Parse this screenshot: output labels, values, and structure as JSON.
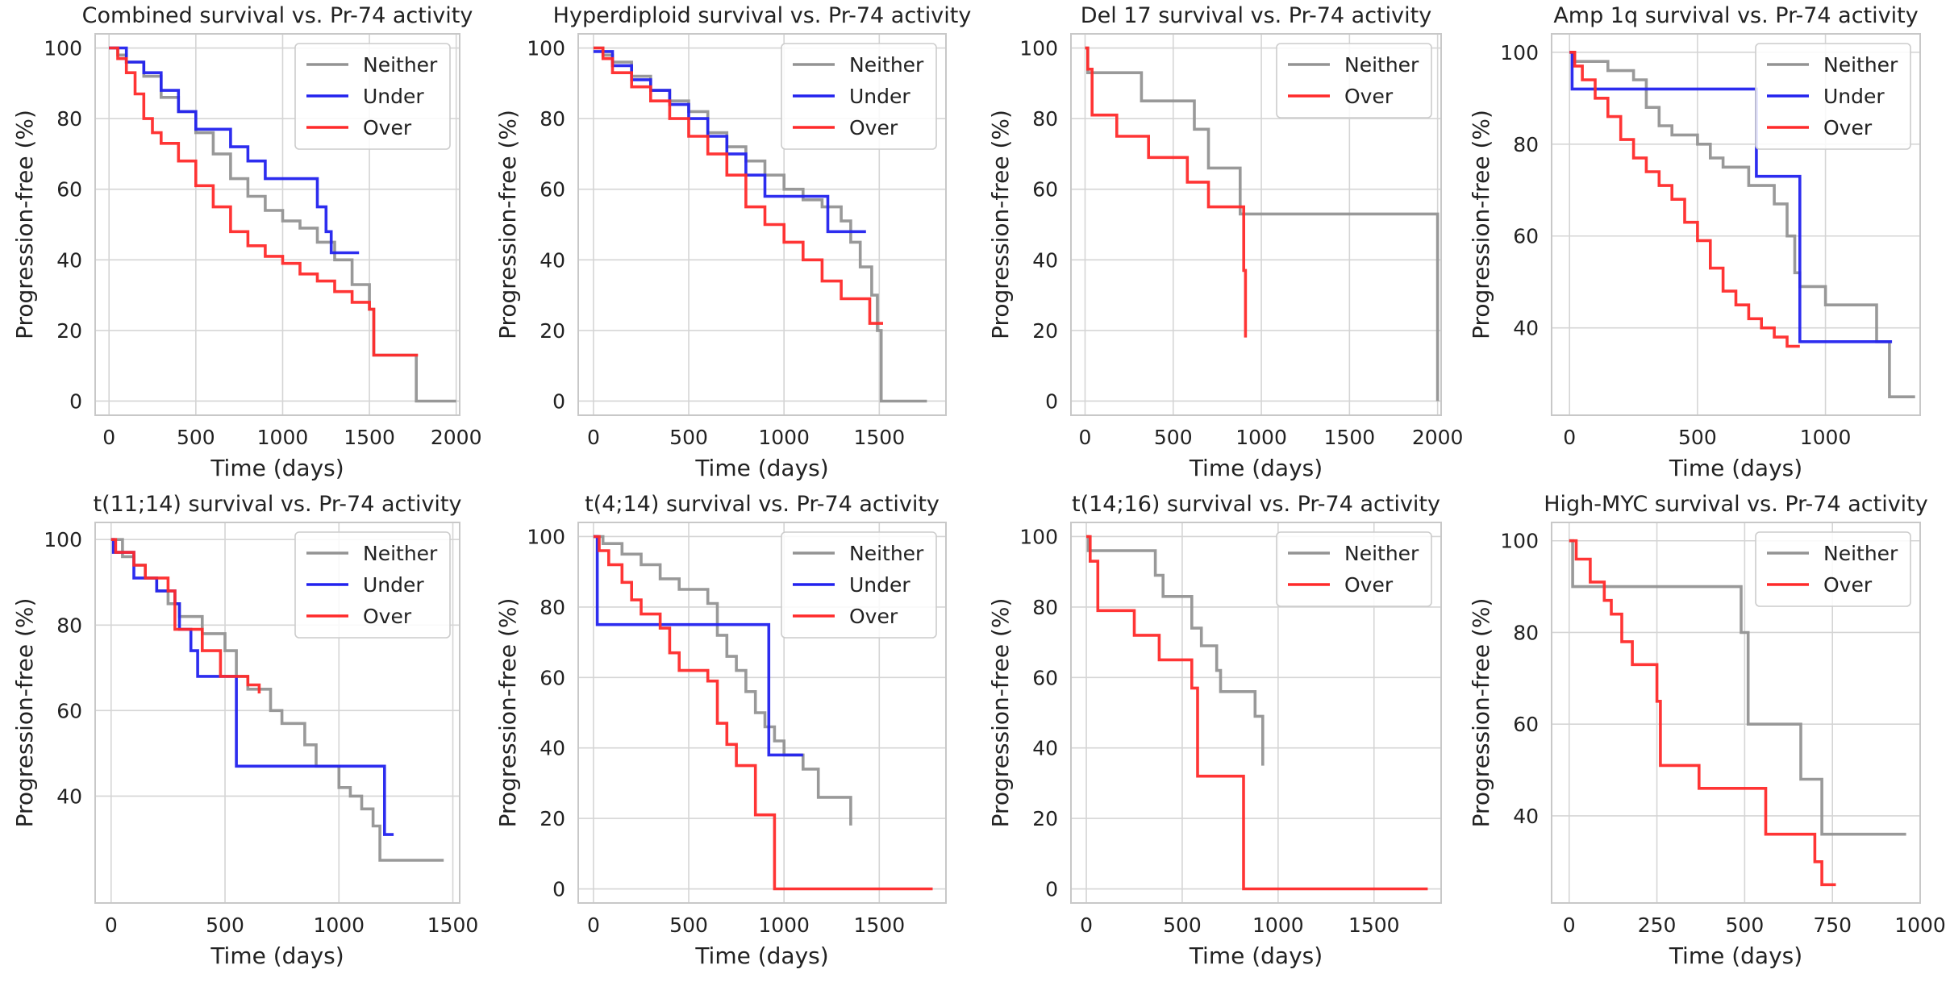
{
  "figure": {
    "y_axis_label": "Progression-free (%)",
    "x_axis_label": "Time (days)"
  },
  "colors": {
    "Neither": "#939393",
    "Under": "#2222ee",
    "Over": "#ff2a2a",
    "grid": "#d5d5d5",
    "frame": "#c8c8c8"
  },
  "chart_data": [
    {
      "type": "line",
      "step": true,
      "title": "Combined survival vs. Pr-74 activity",
      "xlabel": "Time (days)",
      "ylabel": "Progression-free (%)",
      "xlim": [
        -80,
        2020
      ],
      "ylim": [
        -4,
        104
      ],
      "xticks": [
        0,
        500,
        1000,
        1500,
        2000
      ],
      "yticks": [
        0,
        20,
        40,
        60,
        80,
        100
      ],
      "legend": "top-right",
      "series": [
        {
          "name": "Neither",
          "x": [
            0,
            50,
            100,
            200,
            300,
            400,
            500,
            600,
            700,
            800,
            900,
            1000,
            1100,
            1200,
            1300,
            1400,
            1500,
            1525,
            1700,
            1770,
            2000
          ],
          "y": [
            100,
            98,
            96,
            92,
            86,
            82,
            76,
            70,
            63,
            58,
            54,
            51,
            49,
            45,
            40,
            33,
            26,
            13,
            13,
            0,
            0
          ]
        },
        {
          "name": "Under",
          "x": [
            0,
            100,
            200,
            300,
            400,
            500,
            700,
            800,
            900,
            1000,
            1200,
            1250,
            1280,
            1300,
            1440
          ],
          "y": [
            100,
            96,
            93,
            88,
            82,
            77,
            72,
            68,
            63,
            63,
            55,
            48,
            42,
            42,
            42
          ]
        },
        {
          "name": "Over",
          "x": [
            0,
            50,
            100,
            150,
            200,
            250,
            300,
            400,
            500,
            600,
            700,
            800,
            900,
            1000,
            1100,
            1200,
            1300,
            1400,
            1500,
            1525,
            1780
          ],
          "y": [
            100,
            97,
            93,
            87,
            80,
            76,
            73,
            68,
            61,
            55,
            48,
            44,
            41,
            39,
            36,
            34,
            31,
            28,
            26,
            13,
            13
          ]
        }
      ]
    },
    {
      "type": "line",
      "step": true,
      "title": "Hyperdiploid survival vs. Pr-74 activity",
      "xlabel": "Time (days)",
      "ylabel": "Progression-free (%)",
      "xlim": [
        -80,
        1850
      ],
      "ylim": [
        -4,
        104
      ],
      "xticks": [
        0,
        500,
        1000,
        1500
      ],
      "yticks": [
        0,
        20,
        40,
        60,
        80,
        100
      ],
      "legend": "top-right",
      "series": [
        {
          "name": "Neither",
          "x": [
            0,
            50,
            100,
            200,
            300,
            400,
            500,
            600,
            700,
            800,
            900,
            1000,
            1100,
            1200,
            1300,
            1350,
            1400,
            1460,
            1490,
            1510,
            1750
          ],
          "y": [
            100,
            98,
            96,
            92,
            88,
            85,
            82,
            76,
            72,
            68,
            64,
            60,
            57,
            55,
            51,
            45,
            38,
            30,
            20,
            0,
            0
          ]
        },
        {
          "name": "Under",
          "x": [
            0,
            100,
            200,
            300,
            400,
            500,
            600,
            700,
            800,
            900,
            1000,
            1230,
            1430
          ],
          "y": [
            99,
            95,
            91,
            88,
            84,
            80,
            75,
            70,
            64,
            58,
            58,
            48,
            48
          ]
        },
        {
          "name": "Over",
          "x": [
            0,
            50,
            100,
            200,
            300,
            400,
            500,
            600,
            700,
            800,
            900,
            1000,
            1100,
            1200,
            1300,
            1450,
            1520
          ],
          "y": [
            100,
            97,
            93,
            89,
            85,
            80,
            75,
            70,
            64,
            55,
            50,
            45,
            40,
            34,
            29,
            22,
            22
          ]
        }
      ]
    },
    {
      "type": "line",
      "step": true,
      "title": "Del 17 survival vs. Pr-74 activity",
      "xlabel": "Time (days)",
      "ylabel": "Progression-free (%)",
      "xlim": [
        -80,
        2020
      ],
      "ylim": [
        -4,
        104
      ],
      "xticks": [
        0,
        500,
        1000,
        1500,
        2000
      ],
      "yticks": [
        0,
        20,
        40,
        60,
        80,
        100
      ],
      "legend": "top-right",
      "series": [
        {
          "name": "Neither",
          "x": [
            0,
            15,
            120,
            320,
            620,
            700,
            880,
            2000
          ],
          "y": [
            100,
            93,
            93,
            85,
            77,
            66,
            53,
            0
          ]
        },
        {
          "name": "Over",
          "x": [
            0,
            15,
            40,
            180,
            360,
            580,
            700,
            900,
            910
          ],
          "y": [
            100,
            94,
            81,
            75,
            69,
            62,
            55,
            37,
            18
          ]
        }
      ]
    },
    {
      "type": "line",
      "step": true,
      "title": "Amp 1q survival vs. Pr-74 activity",
      "xlabel": "Time (days)",
      "ylabel": "Progression-free (%)",
      "xlim": [
        -70,
        1370
      ],
      "ylim": [
        21,
        104
      ],
      "xticks": [
        0,
        500,
        1000
      ],
      "yticks": [
        40,
        60,
        80,
        100
      ],
      "legend": "top-right",
      "series": [
        {
          "name": "Neither",
          "x": [
            0,
            20,
            150,
            250,
            300,
            350,
            400,
            500,
            550,
            600,
            700,
            800,
            850,
            880,
            900,
            1000,
            1200,
            1250,
            1350
          ],
          "y": [
            100,
            98,
            96,
            94,
            88,
            84,
            82,
            80,
            77,
            75,
            71,
            67,
            60,
            52,
            49,
            45,
            37,
            25,
            25
          ]
        },
        {
          "name": "Under",
          "x": [
            0,
            10,
            720,
            730,
            880,
            900,
            1260
          ],
          "y": [
            100,
            92,
            92,
            73,
            73,
            37,
            37
          ]
        },
        {
          "name": "Over",
          "x": [
            0,
            20,
            50,
            100,
            150,
            200,
            250,
            300,
            350,
            400,
            450,
            500,
            550,
            600,
            650,
            700,
            750,
            800,
            850,
            900
          ],
          "y": [
            100,
            97,
            94,
            90,
            86,
            81,
            77,
            74,
            71,
            68,
            63,
            59,
            53,
            48,
            45,
            42,
            40,
            38,
            36,
            36
          ]
        }
      ]
    },
    {
      "type": "line",
      "step": true,
      "title": "t(11;14) survival vs. Pr-74 activity",
      "xlabel": "Time (days)",
      "ylabel": "Progression-free (%)",
      "xlim": [
        -70,
        1530
      ],
      "ylim": [
        15,
        104
      ],
      "xticks": [
        0,
        500,
        1000,
        1500
      ],
      "yticks": [
        40,
        60,
        80,
        100
      ],
      "legend": "top-right",
      "series": [
        {
          "name": "Neither",
          "x": [
            0,
            50,
            100,
            150,
            200,
            250,
            300,
            400,
            500,
            550,
            600,
            700,
            750,
            850,
            900,
            1000,
            1050,
            1100,
            1150,
            1180,
            1460
          ],
          "y": [
            100,
            96,
            94,
            91,
            88,
            85,
            82,
            78,
            74,
            68,
            65,
            60,
            57,
            52,
            47,
            42,
            40,
            37,
            33,
            25,
            25
          ]
        },
        {
          "name": "Under",
          "x": [
            0,
            10,
            100,
            200,
            280,
            300,
            350,
            380,
            550,
            1200,
            1240
          ],
          "y": [
            100,
            97,
            91,
            88,
            85,
            79,
            74,
            68,
            47,
            31,
            31
          ]
        },
        {
          "name": "Over",
          "x": [
            0,
            20,
            100,
            150,
            250,
            280,
            400,
            480,
            550,
            600,
            650
          ],
          "y": [
            100,
            97,
            94,
            91,
            88,
            79,
            74,
            68,
            68,
            66,
            64
          ]
        }
      ]
    },
    {
      "type": "line",
      "step": true,
      "title": "t(4;14) survival vs. Pr-74 activity",
      "xlabel": "Time (days)",
      "ylabel": "Progression-free (%)",
      "xlim": [
        -80,
        1850
      ],
      "ylim": [
        -4,
        104
      ],
      "xticks": [
        0,
        500,
        1000,
        1500
      ],
      "yticks": [
        0,
        20,
        40,
        60,
        80,
        100
      ],
      "legend": "top-right",
      "series": [
        {
          "name": "Neither",
          "x": [
            0,
            50,
            150,
            250,
            350,
            450,
            600,
            650,
            700,
            750,
            800,
            850,
            900,
            950,
            1000,
            1100,
            1180,
            1350
          ],
          "y": [
            100,
            98,
            95,
            92,
            88,
            85,
            81,
            72,
            66,
            62,
            56,
            50,
            46,
            42,
            38,
            34,
            26,
            18
          ]
        },
        {
          "name": "Under",
          "x": [
            0,
            20,
            900,
            920,
            1100
          ],
          "y": [
            100,
            75,
            75,
            38,
            38
          ]
        },
        {
          "name": "Over",
          "x": [
            0,
            30,
            80,
            150,
            200,
            250,
            350,
            400,
            450,
            600,
            650,
            700,
            750,
            850,
            950,
            1780
          ],
          "y": [
            100,
            96,
            92,
            87,
            82,
            78,
            74,
            67,
            62,
            59,
            47,
            41,
            35,
            21,
            0,
            0
          ]
        }
      ]
    },
    {
      "type": "line",
      "step": true,
      "title": "t(14;16) survival vs. Pr-74 activity",
      "xlabel": "Time (days)",
      "ylabel": "Progression-free (%)",
      "xlim": [
        -80,
        1850
      ],
      "ylim": [
        -4,
        104
      ],
      "xticks": [
        0,
        500,
        1000,
        1500
      ],
      "yticks": [
        0,
        20,
        40,
        60,
        80,
        100
      ],
      "legend": "top-right",
      "series": [
        {
          "name": "Neither",
          "x": [
            0,
            10,
            320,
            360,
            400,
            550,
            600,
            680,
            700,
            880,
            920
          ],
          "y": [
            100,
            96,
            96,
            89,
            83,
            74,
            69,
            62,
            56,
            49,
            35
          ]
        },
        {
          "name": "Over",
          "x": [
            0,
            20,
            60,
            200,
            250,
            380,
            550,
            580,
            820,
            1780
          ],
          "y": [
            100,
            93,
            79,
            79,
            72,
            65,
            57,
            32,
            0,
            0
          ]
        }
      ]
    },
    {
      "type": "line",
      "step": true,
      "title": "High-MYC survival vs. Pr-74 activity",
      "xlabel": "Time (days)",
      "ylabel": "Progression-free (%)",
      "xlim": [
        -50,
        1000
      ],
      "ylim": [
        21,
        104
      ],
      "xticks": [
        0,
        250,
        500,
        750,
        1000
      ],
      "yticks": [
        40,
        60,
        80,
        100
      ],
      "legend": "top-right",
      "series": [
        {
          "name": "Neither",
          "x": [
            0,
            10,
            470,
            490,
            510,
            660,
            720,
            960
          ],
          "y": [
            100,
            90,
            90,
            80,
            60,
            48,
            36,
            36
          ]
        },
        {
          "name": "Over",
          "x": [
            0,
            20,
            60,
            100,
            120,
            150,
            180,
            250,
            260,
            370,
            560,
            700,
            720,
            760
          ],
          "y": [
            100,
            96,
            91,
            87,
            84,
            78,
            73,
            65,
            51,
            46,
            36,
            30,
            25,
            25
          ]
        }
      ]
    }
  ]
}
